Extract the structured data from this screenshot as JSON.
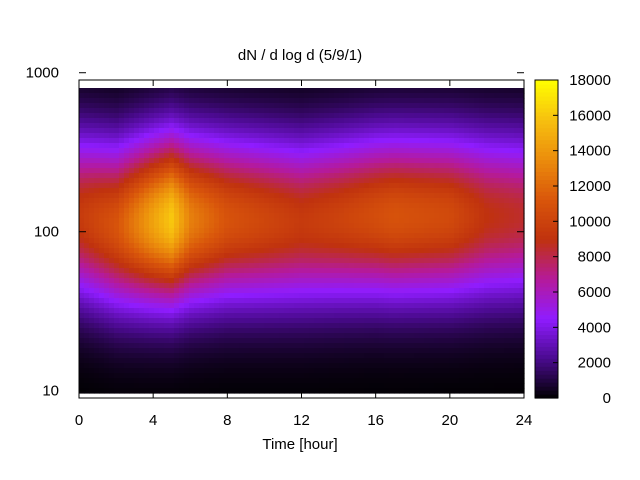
{
  "chart_data": {
    "type": "heatmap",
    "title": "dN / d log d (5/9/1)",
    "xlabel": "Time [hour]",
    "ylabel": "",
    "x_ticks": [
      0,
      4,
      8,
      12,
      16,
      20,
      24
    ],
    "xlim": [
      0,
      24
    ],
    "y_scale": "log",
    "y_ticks": [
      10,
      100,
      1000
    ],
    "ylim": [
      9,
      900
    ],
    "colorbar": {
      "ticks": [
        0,
        2000,
        4000,
        6000,
        8000,
        10000,
        12000,
        14000,
        16000,
        18000
      ],
      "range": [
        0,
        18000
      ],
      "palette": [
        "#000000",
        "#4a0a8e",
        "#8f1cff",
        "#b51a9a",
        "#c0320e",
        "#d9560b",
        "#eb8c0c",
        "#f7c00f",
        "#ffff00"
      ]
    },
    "peak": {
      "diameter_center": [
        {
          "time": 0,
          "d": 125
        },
        {
          "time": 2,
          "d": 110
        },
        {
          "time": 5,
          "d": 120
        },
        {
          "time": 8,
          "d": 120
        },
        {
          "time": 12,
          "d": 115
        },
        {
          "time": 16,
          "d": 125
        },
        {
          "time": 20,
          "d": 125
        },
        {
          "time": 24,
          "d": 125
        }
      ],
      "max_value": [
        {
          "time": 0,
          "value": 9500
        },
        {
          "time": 2,
          "value": 11000
        },
        {
          "time": 4,
          "value": 14500
        },
        {
          "time": 5,
          "value": 16000
        },
        {
          "time": 6,
          "value": 13000
        },
        {
          "time": 8,
          "value": 11000
        },
        {
          "time": 12,
          "value": 9500
        },
        {
          "time": 14,
          "value": 10000
        },
        {
          "time": 17,
          "value": 11000
        },
        {
          "time": 20,
          "value": 10500
        },
        {
          "time": 22,
          "value": 9000
        },
        {
          "time": 24,
          "value": 8500
        }
      ]
    }
  }
}
